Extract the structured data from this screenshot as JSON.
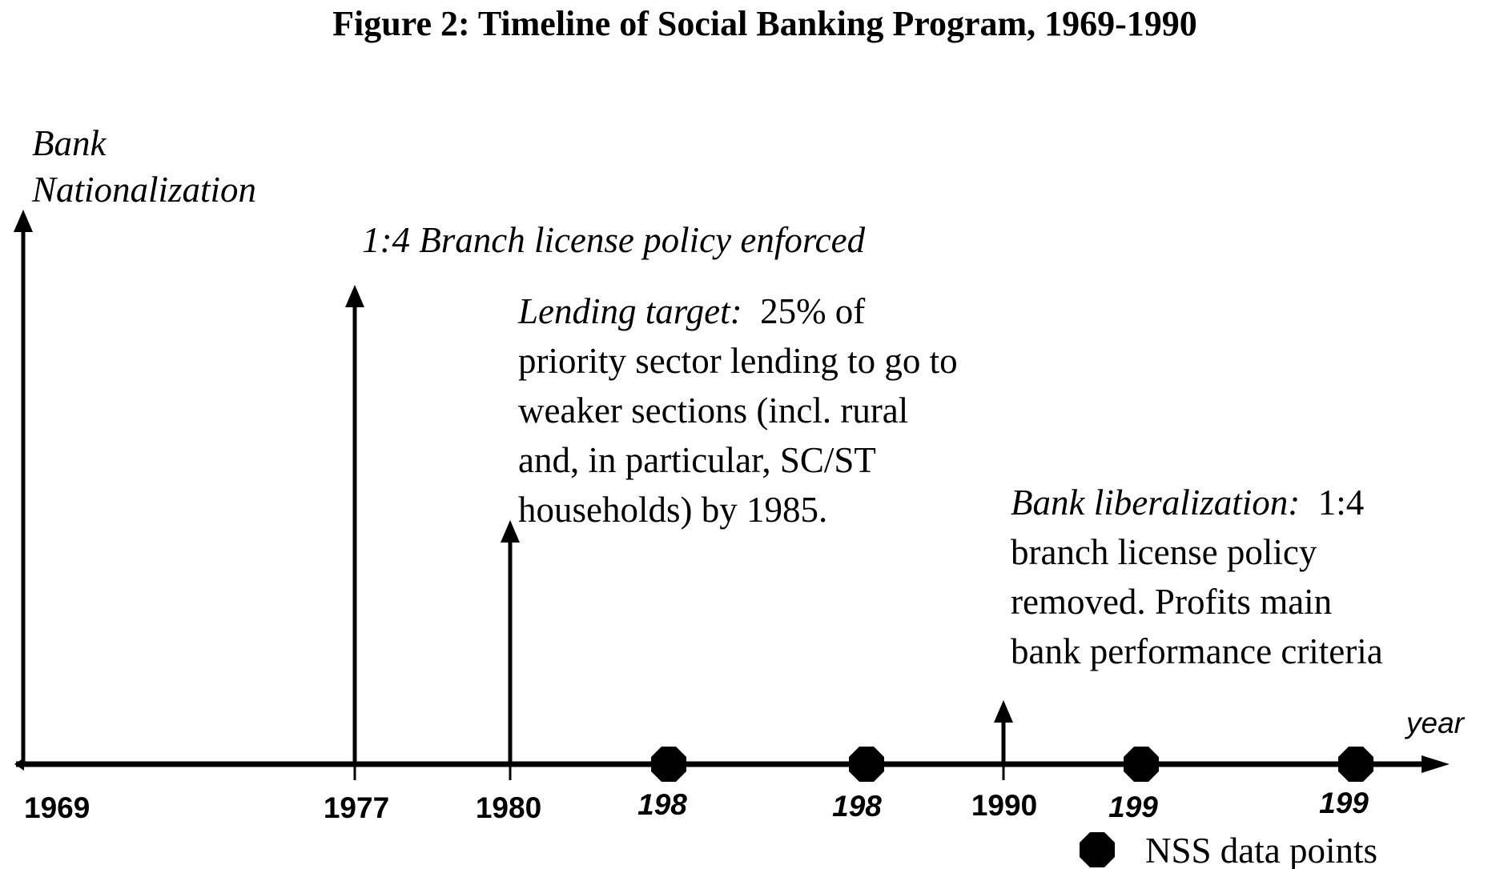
{
  "title": "Figure 2: Timeline of Social Banking Program, 1969-1990",
  "axis_label": "year",
  "ticks": [
    {
      "label": "1969",
      "year": 1969,
      "style": "regular"
    },
    {
      "label": "1977",
      "year": 1977,
      "style": "regular"
    },
    {
      "label": "1980",
      "year": 1980,
      "style": "regular"
    },
    {
      "label": "198",
      "year": 1983,
      "style": "italic",
      "nss": true
    },
    {
      "label": "198",
      "year": 1987,
      "style": "italic",
      "nss": true
    },
    {
      "label": "1990",
      "year": 1990,
      "style": "regular"
    },
    {
      "label": "199",
      "year": 1993,
      "style": "italic",
      "nss": true
    },
    {
      "label": "199",
      "year": 1999,
      "style": "italic",
      "nss": true
    }
  ],
  "events": [
    {
      "year": 1969,
      "lines": [
        {
          "italic": "Bank"
        },
        {
          "italic": "Nationalization"
        }
      ]
    },
    {
      "year": 1977,
      "lines": [
        {
          "italic": "1:4 Branch license policy enforced"
        }
      ]
    },
    {
      "year": 1980,
      "lines": [
        {
          "italic": "Lending target:",
          "normal": "  25% of"
        },
        {
          "normal": "priority sector lending to go to"
        },
        {
          "normal": "weaker sections (incl. rural"
        },
        {
          "normal": "and, in particular, SC/ST"
        },
        {
          "normal": "households) by 1985."
        }
      ]
    },
    {
      "year": 1990,
      "lines": [
        {
          "italic": "Bank liberalization:",
          "normal": "  1:4"
        },
        {
          "normal": "branch license policy"
        },
        {
          "normal": "removed. Profits main"
        },
        {
          "normal": "bank performance criteria"
        }
      ]
    }
  ],
  "legend": {
    "label": "NSS data points",
    "icon": "octagon-marker"
  },
  "colors": {
    "ink": "#000000",
    "background": "#ffffff"
  }
}
